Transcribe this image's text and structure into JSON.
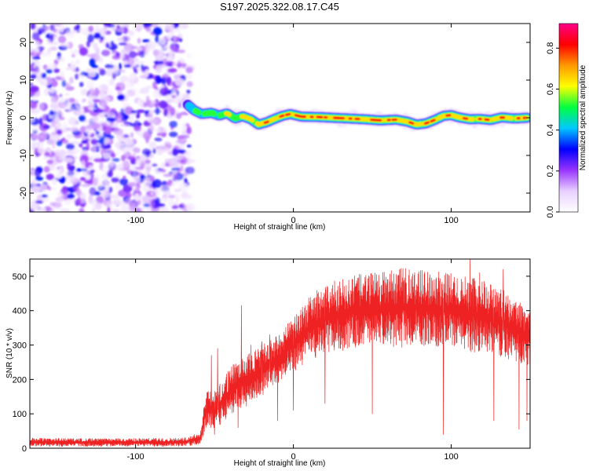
{
  "title": "S197.2025.322.08.17.C45",
  "colors": {
    "snr_line": "#ee2222",
    "colorbar_stops": [
      "#ffffff",
      "#e8d0ff",
      "#9933ff",
      "#0000ff",
      "#00c8ff",
      "#00ff40",
      "#ffff00",
      "#ff9900",
      "#ff0000",
      "#ff0088"
    ]
  },
  "chart_data": [
    {
      "type": "heatmap",
      "name": "spectrogram",
      "xlabel": "Height of straight line (km)",
      "ylabel": "Frequency (Hz)",
      "xlim": [
        -167,
        150
      ],
      "ylim": [
        -25,
        25
      ],
      "xticks": [
        -100,
        0,
        100
      ],
      "xtick_labels": [
        "-100",
        "0",
        "100"
      ],
      "yticks": [
        -20,
        -10,
        0,
        10,
        20
      ],
      "ytick_labels": [
        "-20",
        "-10",
        "0",
        "10",
        "20"
      ],
      "colorbar": {
        "label": "Normalized spectral amplitude",
        "range": [
          0,
          0.92
        ],
        "ticks": [
          0.0,
          0.2,
          0.4,
          0.6,
          0.8
        ],
        "tick_labels": [
          "0.0",
          "0.2",
          "0.4",
          "0.6",
          "0.8"
        ]
      },
      "noise_region_x": [
        -167,
        -67
      ],
      "signal_track": {
        "x": [
          -67,
          -63,
          -58,
          -52,
          -47,
          -42,
          -37,
          -32,
          -27,
          -22,
          -17,
          -12,
          -7,
          -2,
          5,
          15,
          25,
          35,
          45,
          55,
          65,
          72,
          78,
          84,
          90,
          95,
          100,
          105,
          112,
          118,
          125,
          132,
          140,
          148
        ],
        "freq": [
          3.5,
          2.0,
          1.0,
          1.3,
          0.6,
          1.2,
          -0.2,
          0.4,
          -0.4,
          -1.8,
          -1.2,
          -0.3,
          0.5,
          1.0,
          0.3,
          0.2,
          0.0,
          -0.2,
          -0.4,
          -0.7,
          -0.5,
          -1.0,
          -1.8,
          -1.5,
          -0.5,
          0.5,
          0.7,
          0.1,
          -0.4,
          -0.3,
          -0.6,
          0.1,
          -0.2,
          0.0
        ],
        "amplitude": [
          0.4,
          0.55,
          0.6,
          0.62,
          0.6,
          0.65,
          0.7,
          0.72,
          0.75,
          0.8,
          0.85,
          0.85,
          0.85,
          0.9,
          0.92,
          0.92,
          0.9,
          0.9,
          0.9,
          0.9,
          0.85,
          0.85,
          0.85,
          0.85,
          0.85,
          0.85,
          0.85,
          0.85,
          0.85,
          0.85,
          0.85,
          0.85,
          0.85,
          0.85
        ]
      }
    },
    {
      "type": "line",
      "name": "snr",
      "xlabel": "Height of straight line (km)",
      "ylabel": "SNR (10 * v/v)",
      "xlim": [
        -167,
        150
      ],
      "ylim": [
        0,
        550
      ],
      "xticks": [
        -100,
        0,
        100
      ],
      "xtick_labels": [
        "-100",
        "0",
        "100"
      ],
      "yticks": [
        0,
        100,
        200,
        300,
        400,
        500
      ],
      "ytick_labels": [
        "0",
        "100",
        "200",
        "300",
        "400",
        "500"
      ],
      "series": [
        {
          "name": "SNR",
          "envelope_x": [
            -167,
            -120,
            -70,
            -59,
            -55,
            -50,
            -45,
            -40,
            -30,
            -20,
            -10,
            0,
            10,
            20,
            30,
            40,
            50,
            60,
            70,
            80,
            90,
            100,
            110,
            120,
            130,
            140,
            150
          ],
          "envelope_low": [
            5,
            5,
            5,
            10,
            60,
            50,
            60,
            90,
            120,
            150,
            180,
            220,
            250,
            270,
            280,
            290,
            290,
            290,
            290,
            290,
            290,
            285,
            280,
            270,
            260,
            250,
            240
          ],
          "envelope_high": [
            30,
            28,
            30,
            45,
            180,
            170,
            200,
            240,
            270,
            300,
            330,
            380,
            440,
            480,
            490,
            505,
            510,
            515,
            525,
            520,
            515,
            510,
            500,
            490,
            470,
            440,
            400
          ],
          "dips": [
            [
              -50,
              40
            ],
            [
              -35,
              60
            ],
            [
              -10,
              80
            ],
            [
              0,
              110
            ],
            [
              20,
              130
            ],
            [
              50,
              100
            ],
            [
              95,
              40
            ],
            [
              127,
              80
            ],
            [
              143,
              55
            ],
            [
              148,
              80
            ]
          ],
          "spikes": [
            [
              -52,
              270
            ],
            [
              -48,
              290
            ],
            [
              -33,
              415
            ],
            [
              -27,
              300
            ],
            [
              -20,
              310
            ],
            [
              -15,
              330
            ],
            [
              112,
              550
            ],
            [
              118,
              510
            ],
            [
              133,
              520
            ]
          ]
        }
      ]
    }
  ]
}
